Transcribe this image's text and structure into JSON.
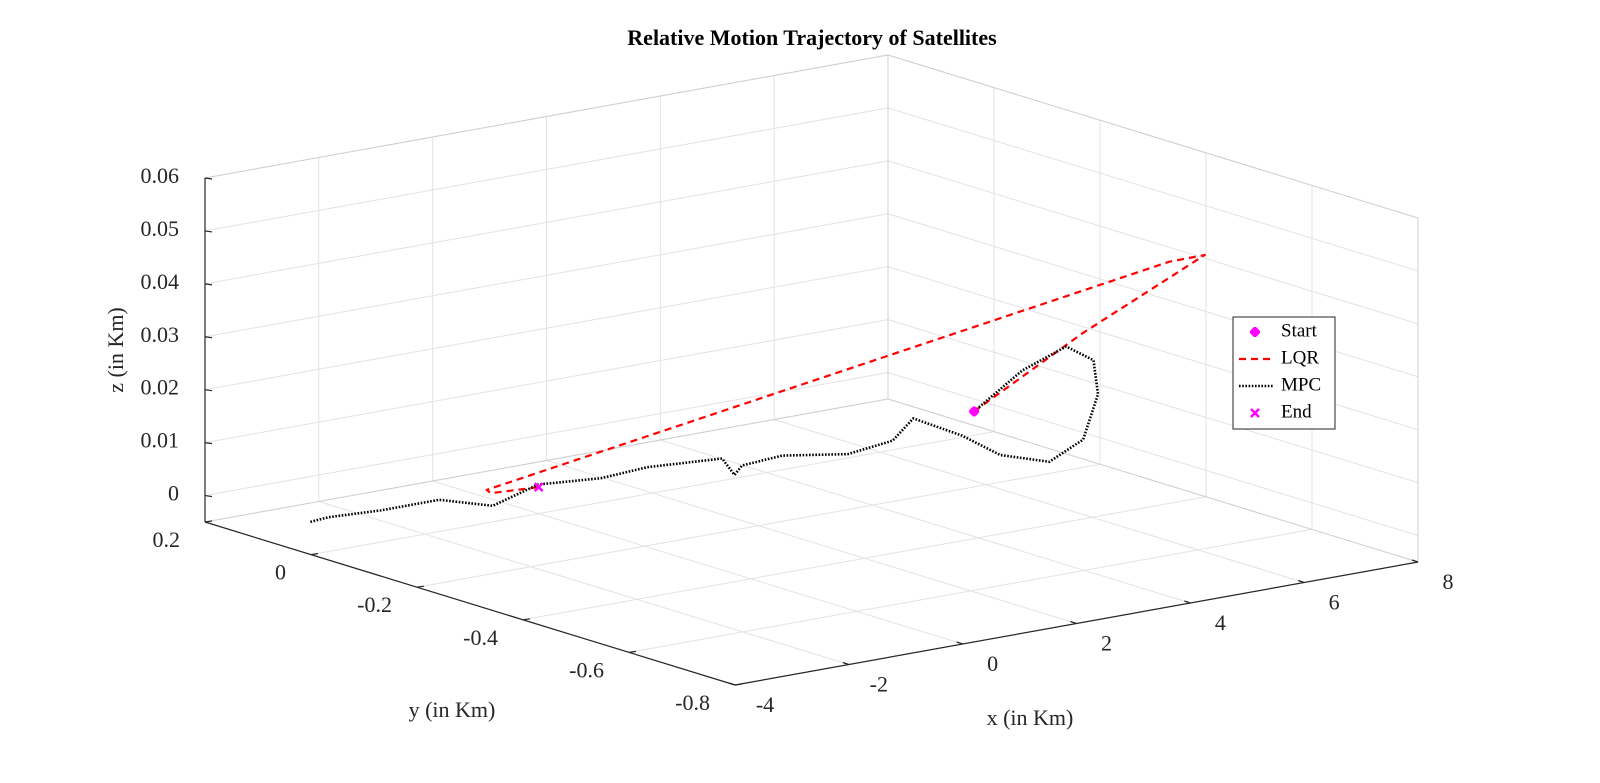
{
  "chart_data": {
    "type": "line3d",
    "title": "Relative Motion Trajectory of Satellites",
    "xlabel": "x (in Km)",
    "ylabel": "y (in Km)",
    "zlabel": "z (in Km)",
    "xlim": [
      -4,
      8
    ],
    "ylim": [
      -0.8,
      0.2
    ],
    "zlim": [
      -0.005,
      0.06
    ],
    "xticks": [
      -4,
      -2,
      0,
      2,
      4,
      6,
      8
    ],
    "yticks": [
      -0.8,
      -0.6,
      -0.4,
      -0.2,
      0,
      0.2
    ],
    "zticks": [
      0,
      0.01,
      0.02,
      0.03,
      0.04,
      0.05,
      0.06
    ],
    "grid": true,
    "legend_location": "east",
    "series": [
      {
        "name": "Start",
        "color": "#ff00ff",
        "marker": "plus",
        "x": [
          3.74
        ],
        "y": [
          -0.42
        ],
        "z": [
          0.02
        ]
      },
      {
        "name": "LQR",
        "color": "#ff0000",
        "linestyle": "dashed",
        "x": [
          3.74,
          4.9,
          6.21,
          5.96,
          -1.25,
          -0.75,
          0
        ],
        "y": [
          -0.42,
          -0.5,
          -0.59,
          -0.55,
          -0.036,
          0.01,
          0
        ],
        "z": [
          0.02,
          0.035,
          0.05,
          0.048,
          0.003,
          0,
          0
        ]
      },
      {
        "name": "MPC",
        "color": "#000000",
        "linestyle": "dotted",
        "x": [
          3.74,
          3.84,
          4.24,
          5.0,
          5.73,
          5.84,
          5.62,
          5.13,
          5.02,
          4.72,
          4.45,
          3.66,
          2.88,
          2.27,
          2.23,
          1.92,
          1.35,
          0.63,
          -0.1,
          -1.18,
          -1.75,
          -2.58,
          -3.42,
          -3.6
        ],
        "y": [
          -0.42,
          -0.5,
          -0.54,
          -0.51,
          -0.44,
          -0.4,
          -0.36,
          -0.32,
          -0.26,
          -0.2,
          -0.19,
          -0.19,
          -0.15,
          -0.14,
          -0.13,
          -0.14,
          -0.06,
          -0.05,
          -0.01,
          -0.04,
          0,
          0.02,
          0.03,
          0.045
        ],
        "z": [
          0.02,
          0.03,
          0.035,
          0.03,
          0.02,
          0.01,
          0.005,
          0.006,
          0.008,
          0.01,
          0.006,
          0.005,
          0.005,
          0.004,
          0.002,
          0.006,
          0.003,
          0.002,
          0.001,
          0,
          0.001,
          0,
          0,
          -0.001
        ]
      },
      {
        "name": "End",
        "color": "#ff00ff",
        "marker": "x",
        "x": [
          0
        ],
        "y": [
          0
        ],
        "z": [
          0
        ]
      }
    ]
  }
}
